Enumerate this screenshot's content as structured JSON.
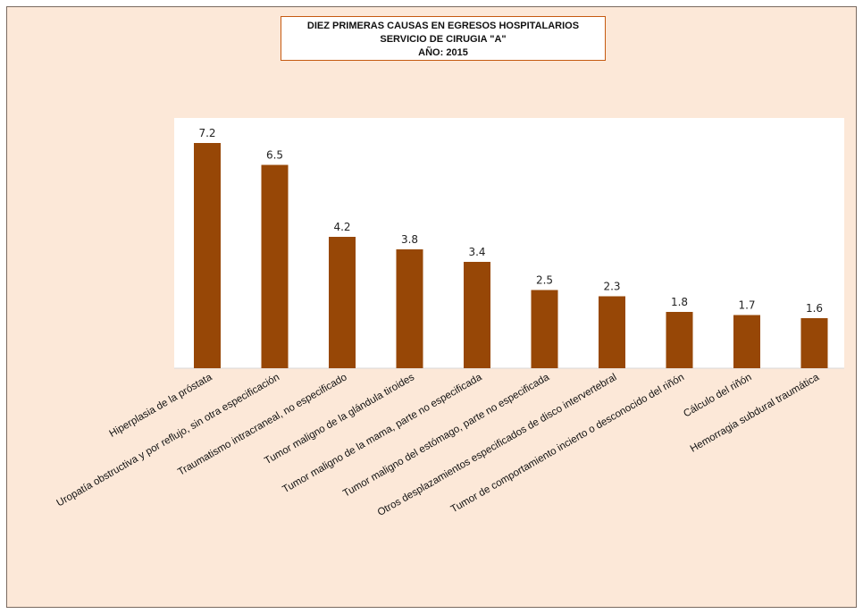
{
  "chart_data": {
    "type": "bar",
    "title_lines": [
      "DIEZ PRIMERAS CAUSAS EN EGRESOS HOSPITALARIOS",
      "SERVICIO DE CIRUGIA \"A\"",
      "AÑO: 2015"
    ],
    "categories": [
      "Hiperplasia de la próstata",
      "Uropatía obstructiva y por reflujo, sin otra especificación",
      "Traumatismo intracraneal, no especificado",
      "Tumor maligno de la glándula tiroides",
      "Tumor maligno de la mama, parte no especificada",
      "Tumor maligno del estómago, parte no especificada",
      "Otros desplazamientos especificados de disco intervertebral",
      "Tumor de comportamiento incierto o desconocido del riñón",
      "Cálculo del riñón",
      "Hemorragia subdural traumática"
    ],
    "values": [
      7.2,
      6.5,
      4.2,
      3.8,
      3.4,
      2.5,
      2.3,
      1.8,
      1.7,
      1.6
    ],
    "value_labels": [
      "7.2",
      "6.5",
      "4.2",
      "3.8",
      "3.4",
      "2.5",
      "2.3",
      "1.8",
      "1.7",
      "1.6"
    ],
    "ylim": [
      0,
      8
    ],
    "grid": false,
    "legend": "none",
    "bar_color": "#974706"
  }
}
